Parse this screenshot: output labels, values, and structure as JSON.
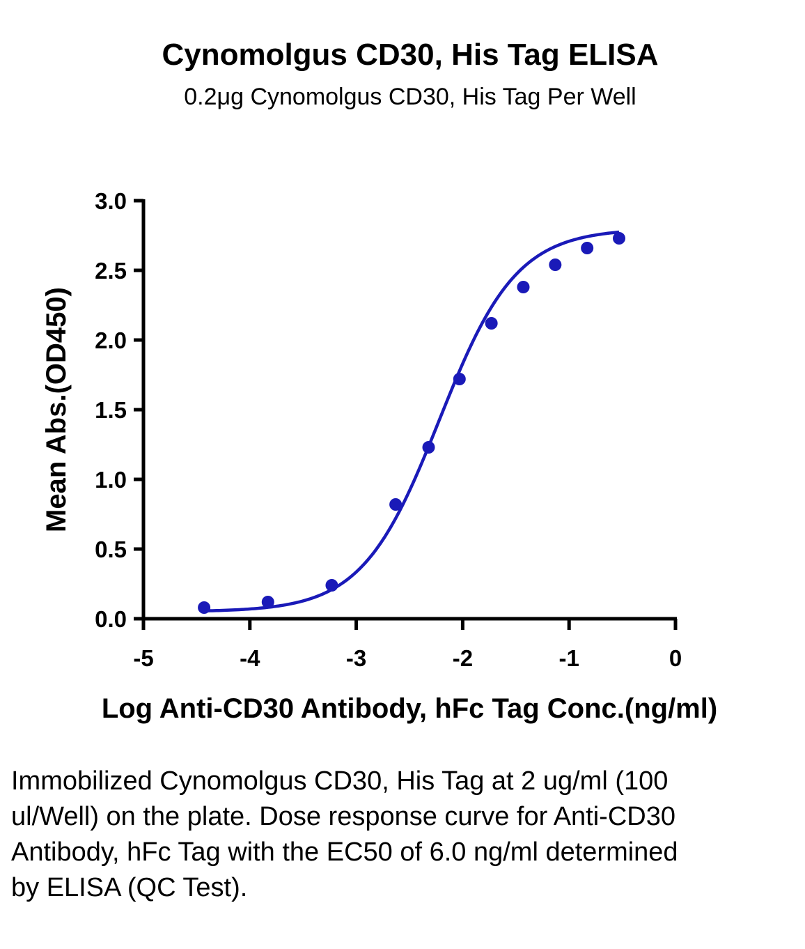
{
  "chart_data": {
    "type": "scatter",
    "title": "Cynomolgus CD30, His Tag ELISA",
    "subtitle": "0.2μg Cynomolgus CD30, His Tag Per Well",
    "xlabel": "Log Anti-CD30 Antibody, hFc Tag Conc.(ng/ml)",
    "ylabel": "Mean Abs.(OD450)",
    "xlim": [
      -5,
      0
    ],
    "ylim": [
      0,
      3.0
    ],
    "x_ticks": [
      -5,
      -4,
      -3,
      -2,
      -1,
      0
    ],
    "x_tick_labels": [
      "-5",
      "-4",
      "-3",
      "-2",
      "-1",
      "0"
    ],
    "y_ticks": [
      0,
      0.5,
      1.0,
      1.5,
      2.0,
      2.5,
      3.0
    ],
    "y_tick_labels": [
      "0.0",
      "0.5",
      "1.0",
      "1.5",
      "2.0",
      "2.5",
      "3.0"
    ],
    "grid": false,
    "color": "#1a1ab8",
    "series": [
      {
        "x": [
          -4.43,
          -3.83,
          -3.23,
          -2.63,
          -2.32,
          -2.03,
          -1.73,
          -1.43,
          -1.13,
          -0.83,
          -0.53
        ],
        "y": [
          0.08,
          0.12,
          0.24,
          0.82,
          1.23,
          1.72,
          2.12,
          2.38,
          2.54,
          2.66,
          2.73
        ],
        "fit": "four-parameter logistic curve"
      }
    ]
  },
  "caption": "Immobilized Cynomolgus CD30, His Tag at 2 ug/ml (100 ul/Well) on the plate. Dose response curve for Anti-CD30 Antibody, hFc Tag with the EC50 of 6.0 ng/ml determined by ELISA (QC Test)."
}
